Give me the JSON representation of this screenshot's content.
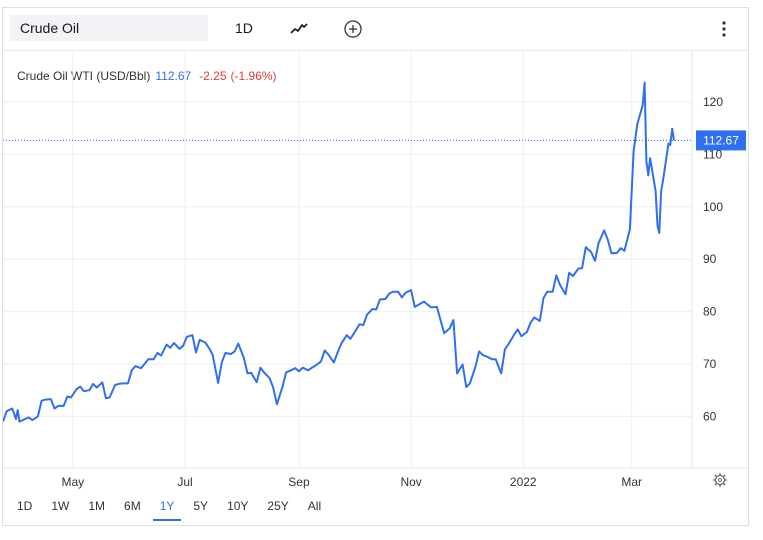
{
  "toolbar": {
    "symbol_value": "Crude Oil",
    "interval": "1D",
    "chart_type_icon": "line-chart-icon",
    "compare_icon": "add-circle-icon",
    "menu_icon": "kebab-menu-icon"
  },
  "legend": {
    "name": "Crude Oil WTI (USD/Bbl)",
    "price": "112.67",
    "change": "-2.25",
    "change_pct": "(-1.96%)"
  },
  "price_tag": "112.67",
  "settings_icon": "gear-icon",
  "ranges": [
    "1D",
    "1W",
    "1M",
    "6M",
    "1Y",
    "5Y",
    "10Y",
    "25Y",
    "All"
  ],
  "active_range": "1Y",
  "colors": {
    "line": "#2f6ff0",
    "negative": "#e23c3c",
    "accent": "#2f6ff0"
  },
  "chart_data": {
    "type": "line",
    "title": "Crude Oil WTI (USD/Bbl)",
    "xlabel": "",
    "ylabel": "",
    "ylim": [
      50,
      125
    ],
    "y_ticks": [
      60,
      70,
      80,
      90,
      100,
      110,
      120
    ],
    "x_ticks": [
      "May",
      "Jul",
      "Sep",
      "Nov",
      "2022",
      "Mar"
    ],
    "last_value": 112.67,
    "grid": true,
    "series": [
      {
        "values": [
          [
            "2021-03-24",
            59.0
          ],
          [
            "2021-03-26",
            61.0
          ],
          [
            "2021-03-29",
            61.5
          ],
          [
            "2021-03-31",
            59.5
          ],
          [
            "2021-04-01",
            61.2
          ],
          [
            "2021-04-02",
            59.0
          ],
          [
            "2021-04-05",
            59.5
          ],
          [
            "2021-04-07",
            59.8
          ],
          [
            "2021-04-09",
            59.3
          ],
          [
            "2021-04-12",
            60.0
          ],
          [
            "2021-04-14",
            63.0
          ],
          [
            "2021-04-16",
            63.2
          ],
          [
            "2021-04-19",
            63.3
          ],
          [
            "2021-04-21",
            61.5
          ],
          [
            "2021-04-23",
            62.0
          ],
          [
            "2021-04-26",
            62.0
          ],
          [
            "2021-04-28",
            63.8
          ],
          [
            "2021-04-30",
            63.6
          ],
          [
            "2021-05-03",
            65.2
          ],
          [
            "2021-05-05",
            65.7
          ],
          [
            "2021-05-07",
            64.8
          ],
          [
            "2021-05-10",
            65.0
          ],
          [
            "2021-05-12",
            66.2
          ],
          [
            "2021-05-14",
            65.5
          ],
          [
            "2021-05-17",
            66.5
          ],
          [
            "2021-05-19",
            63.5
          ],
          [
            "2021-05-21",
            63.6
          ],
          [
            "2021-05-24",
            66.0
          ],
          [
            "2021-05-26",
            66.2
          ],
          [
            "2021-05-28",
            66.3
          ],
          [
            "2021-05-31",
            66.3
          ],
          [
            "2021-06-02",
            68.8
          ],
          [
            "2021-06-04",
            69.6
          ],
          [
            "2021-06-07",
            69.2
          ],
          [
            "2021-06-09",
            70.0
          ],
          [
            "2021-06-11",
            70.9
          ],
          [
            "2021-06-14",
            70.9
          ],
          [
            "2021-06-16",
            72.1
          ],
          [
            "2021-06-18",
            71.6
          ],
          [
            "2021-06-21",
            73.7
          ],
          [
            "2021-06-23",
            73.1
          ],
          [
            "2021-06-25",
            74.0
          ],
          [
            "2021-06-28",
            72.9
          ],
          [
            "2021-06-30",
            73.5
          ],
          [
            "2021-07-02",
            75.2
          ],
          [
            "2021-07-05",
            75.5
          ],
          [
            "2021-07-07",
            72.2
          ],
          [
            "2021-07-09",
            74.6
          ],
          [
            "2021-07-12",
            74.1
          ],
          [
            "2021-07-14",
            73.1
          ],
          [
            "2021-07-16",
            71.8
          ],
          [
            "2021-07-19",
            66.4
          ],
          [
            "2021-07-21",
            70.3
          ],
          [
            "2021-07-23",
            72.1
          ],
          [
            "2021-07-26",
            71.9
          ],
          [
            "2021-07-28",
            72.4
          ],
          [
            "2021-07-30",
            73.9
          ],
          [
            "2021-08-02",
            71.2
          ],
          [
            "2021-08-04",
            68.2
          ],
          [
            "2021-08-06",
            68.3
          ],
          [
            "2021-08-09",
            66.5
          ],
          [
            "2021-08-11",
            69.3
          ],
          [
            "2021-08-13",
            68.4
          ],
          [
            "2021-08-16",
            67.3
          ],
          [
            "2021-08-18",
            65.5
          ],
          [
            "2021-08-20",
            62.3
          ],
          [
            "2021-08-23",
            65.6
          ],
          [
            "2021-08-25",
            68.4
          ],
          [
            "2021-08-27",
            68.7
          ],
          [
            "2021-08-30",
            69.2
          ],
          [
            "2021-09-01",
            68.6
          ],
          [
            "2021-09-03",
            69.3
          ],
          [
            "2021-09-06",
            68.8
          ],
          [
            "2021-09-08",
            69.3
          ],
          [
            "2021-09-10",
            69.7
          ],
          [
            "2021-09-13",
            70.5
          ],
          [
            "2021-09-15",
            72.6
          ],
          [
            "2021-09-17",
            71.8
          ],
          [
            "2021-09-20",
            70.3
          ],
          [
            "2021-09-22",
            72.2
          ],
          [
            "2021-09-24",
            73.9
          ],
          [
            "2021-09-27",
            75.5
          ],
          [
            "2021-09-29",
            74.8
          ],
          [
            "2021-10-01",
            75.9
          ],
          [
            "2021-10-04",
            77.6
          ],
          [
            "2021-10-06",
            77.4
          ],
          [
            "2021-10-08",
            79.4
          ],
          [
            "2021-10-11",
            80.5
          ],
          [
            "2021-10-13",
            80.4
          ],
          [
            "2021-10-15",
            82.3
          ],
          [
            "2021-10-18",
            82.4
          ],
          [
            "2021-10-20",
            83.4
          ],
          [
            "2021-10-22",
            83.8
          ],
          [
            "2021-10-25",
            83.8
          ],
          [
            "2021-10-27",
            82.7
          ],
          [
            "2021-10-29",
            83.6
          ],
          [
            "2021-11-01",
            84.1
          ],
          [
            "2021-11-03",
            80.9
          ],
          [
            "2021-11-05",
            81.3
          ],
          [
            "2021-11-08",
            81.9
          ],
          [
            "2021-11-10",
            81.3
          ],
          [
            "2021-11-12",
            80.8
          ],
          [
            "2021-11-15",
            80.9
          ],
          [
            "2021-11-17",
            78.4
          ],
          [
            "2021-11-19",
            75.9
          ],
          [
            "2021-11-22",
            76.8
          ],
          [
            "2021-11-24",
            78.4
          ],
          [
            "2021-11-26",
            68.2
          ],
          [
            "2021-11-29",
            69.9
          ],
          [
            "2021-12-01",
            65.6
          ],
          [
            "2021-12-03",
            66.3
          ],
          [
            "2021-12-06",
            69.5
          ],
          [
            "2021-12-08",
            72.4
          ],
          [
            "2021-12-10",
            71.7
          ],
          [
            "2021-12-13",
            71.3
          ],
          [
            "2021-12-15",
            70.9
          ],
          [
            "2021-12-17",
            70.9
          ],
          [
            "2021-12-20",
            68.2
          ],
          [
            "2021-12-22",
            72.8
          ],
          [
            "2021-12-24",
            73.8
          ],
          [
            "2021-12-27",
            75.6
          ],
          [
            "2021-12-29",
            76.6
          ],
          [
            "2021-12-31",
            75.3
          ],
          [
            "2022-01-03",
            76.1
          ],
          [
            "2022-01-05",
            77.9
          ],
          [
            "2022-01-07",
            78.9
          ],
          [
            "2022-01-10",
            78.2
          ],
          [
            "2022-01-12",
            82.6
          ],
          [
            "2022-01-14",
            83.8
          ],
          [
            "2022-01-17",
            83.8
          ],
          [
            "2022-01-19",
            86.9
          ],
          [
            "2022-01-21",
            85.1
          ],
          [
            "2022-01-24",
            83.3
          ],
          [
            "2022-01-26",
            87.4
          ],
          [
            "2022-01-28",
            86.8
          ],
          [
            "2022-01-31",
            88.2
          ],
          [
            "2022-02-02",
            88.3
          ],
          [
            "2022-02-04",
            92.3
          ],
          [
            "2022-02-07",
            91.3
          ],
          [
            "2022-02-09",
            89.7
          ],
          [
            "2022-02-11",
            93.1
          ],
          [
            "2022-02-14",
            95.5
          ],
          [
            "2022-02-16",
            93.7
          ],
          [
            "2022-02-18",
            91.1
          ],
          [
            "2022-02-21",
            91.2
          ],
          [
            "2022-02-23",
            92.1
          ],
          [
            "2022-02-25",
            91.6
          ],
          [
            "2022-02-28",
            95.7
          ],
          [
            "2022-03-02",
            110.6
          ],
          [
            "2022-03-04",
            115.7
          ],
          [
            "2022-03-07",
            119.4
          ],
          [
            "2022-03-08",
            123.7
          ],
          [
            "2022-03-09",
            108.7
          ],
          [
            "2022-03-10",
            106.0
          ],
          [
            "2022-03-11",
            109.3
          ],
          [
            "2022-03-14",
            103.0
          ],
          [
            "2022-03-15",
            96.4
          ],
          [
            "2022-03-16",
            95.0
          ],
          [
            "2022-03-17",
            102.9
          ],
          [
            "2022-03-18",
            105.0
          ],
          [
            "2022-03-21",
            112.1
          ],
          [
            "2022-03-22",
            111.8
          ],
          [
            "2022-03-23",
            114.9
          ],
          [
            "2022-03-24",
            112.67
          ]
        ]
      }
    ]
  }
}
